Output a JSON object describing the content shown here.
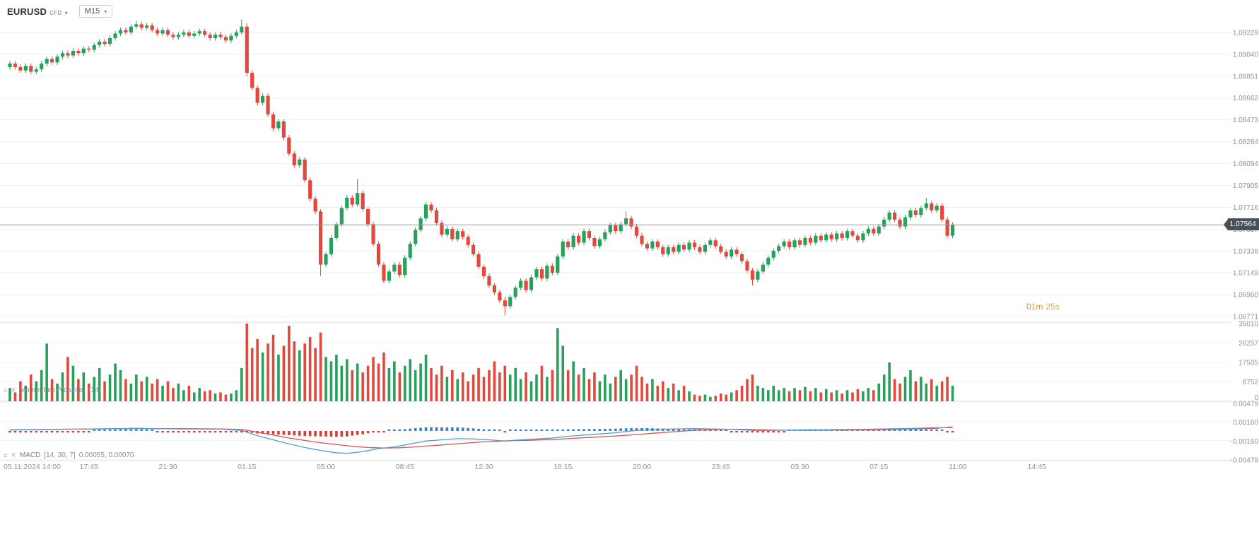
{
  "header": {
    "symbol": "EURUSD",
    "instrument_type": "CFD",
    "timeframe": "M15"
  },
  "price_badge": {
    "value": "1.07564"
  },
  "timer": {
    "minutes": "01m",
    "seconds": "25s"
  },
  "indicators": {
    "volume": {
      "name": "Momentum (Volume)",
      "params": "[14]"
    },
    "macd": {
      "name": "MACD",
      "params": "[14, 30, 7]",
      "values": "0.00055, 0.00070"
    }
  },
  "colors": {
    "up": "#27a05c",
    "down": "#e0493c",
    "macd_line": "#4e9fd4",
    "macd_signal": "#d8544f",
    "macd_hist_up": "#3b7fc4",
    "macd_hist_down": "#cf4336",
    "current_price_line": "#9a9a9a",
    "grid": "#efefef",
    "separator": "#e2e2e2",
    "axis_text": "#8e9398",
    "badge_bg": "#4a5058"
  },
  "chart_data": {
    "type": "candlestick",
    "title": "EURUSD CFD M15",
    "current_price": 1.07564,
    "current_price_label": "1.07564",
    "x_axis": {
      "candles_per_label": 15,
      "labels": [
        "05.11.2024  14:00",
        "17:45",
        "21:30",
        "01:15",
        "05:00",
        "08:45",
        "12:30",
        "16:15",
        "20:00",
        "23:45",
        "03:30",
        "07:15",
        "11:00",
        "14:45"
      ]
    },
    "y_axis": {
      "price_ticks": [
        "1.09229",
        "1.09040",
        "1.08851",
        "1.08662",
        "1.08473",
        "1.08284",
        "1.08094",
        "1.07905",
        "1.07716",
        "1.07527",
        "1.07338",
        "1.07149",
        "1.06960",
        "1.06771"
      ]
    },
    "candles": {
      "first_open": 1.0893,
      "default_wick": 0.00022,
      "closes": [
        1.0896,
        1.0893,
        1.089,
        1.0894,
        1.0889,
        1.0891,
        1.0896,
        1.09,
        1.0897,
        1.0902,
        1.0905,
        1.0903,
        1.0907,
        1.0905,
        1.0909,
        1.0908,
        1.0912,
        1.0915,
        1.0913,
        1.0918,
        1.0922,
        1.0925,
        1.0923,
        1.0928,
        1.093,
        1.0927,
        1.0929,
        1.0925,
        1.0922,
        1.0925,
        1.0921,
        1.0919,
        1.0921,
        1.0923,
        1.092,
        1.0922,
        1.0924,
        1.0921,
        1.0918,
        1.0921,
        1.0919,
        1.0916,
        1.092,
        1.0923,
        1.0928,
        1.0888,
        1.0875,
        1.0862,
        1.0868,
        1.0852,
        1.084,
        1.0846,
        1.0832,
        1.0818,
        1.0808,
        1.0813,
        1.0795,
        1.0779,
        1.0768,
        1.0722,
        1.0731,
        1.0745,
        1.0757,
        1.0771,
        1.078,
        1.0774,
        1.0784,
        1.077,
        1.0757,
        1.074,
        1.0722,
        1.0708,
        1.0716,
        1.0722,
        1.0713,
        1.0728,
        1.074,
        1.0752,
        1.0762,
        1.0774,
        1.0769,
        1.0758,
        1.0748,
        1.0753,
        1.0744,
        1.0751,
        1.0746,
        1.0739,
        1.0731,
        1.072,
        1.0712,
        1.0704,
        1.0698,
        1.0691,
        1.0686,
        1.0694,
        1.0702,
        1.0708,
        1.07,
        1.0711,
        1.0718,
        1.071,
        1.0721,
        1.0715,
        1.0729,
        1.0742,
        1.0737,
        1.0747,
        1.0741,
        1.0751,
        1.0745,
        1.0738,
        1.0744,
        1.075,
        1.0756,
        1.0751,
        1.0757,
        1.0762,
        1.0755,
        1.0747,
        1.074,
        1.0736,
        1.0742,
        1.0737,
        1.0731,
        1.0737,
        1.0733,
        1.0739,
        1.0735,
        1.0741,
        1.0737,
        1.0733,
        1.0739,
        1.0743,
        1.0738,
        1.0733,
        1.0729,
        1.0735,
        1.0731,
        1.0725,
        1.0717,
        1.0709,
        1.0716,
        1.0722,
        1.0728,
        1.0734,
        1.0738,
        1.0742,
        1.0737,
        1.0743,
        1.0739,
        1.0745,
        1.0741,
        1.0747,
        1.0743,
        1.0748,
        1.0744,
        1.0749,
        1.0745,
        1.0751,
        1.0747,
        1.0743,
        1.0749,
        1.0753,
        1.0749,
        1.0755,
        1.0761,
        1.0767,
        1.0761,
        1.0755,
        1.0763,
        1.0769,
        1.0765,
        1.0771,
        1.0775,
        1.0769,
        1.0773,
        1.0761,
        1.0747,
        1.07564
      ],
      "wick_overrides": {
        "24": [
          1.0933,
          1.0926
        ],
        "44": [
          1.0934,
          1.0921
        ],
        "45": [
          1.0931,
          1.0885
        ],
        "59": [
          1.077,
          1.0712
        ],
        "66": [
          1.0796,
          1.0772
        ],
        "94": [
          1.0694,
          1.0678
        ],
        "117": [
          1.0768,
          1.0755
        ],
        "141": [
          1.0719,
          1.0704
        ],
        "174": [
          1.078,
          1.0769
        ]
      }
    },
    "volume": {
      "ticks": [
        "35010",
        "26257",
        "17505",
        "8752",
        "0"
      ],
      "values": [
        6000,
        4000,
        9000,
        7000,
        12000,
        9000,
        14000,
        26000,
        10000,
        8000,
        13000,
        20000,
        16000,
        10000,
        13000,
        8000,
        11000,
        15000,
        9000,
        12000,
        17000,
        14000,
        10000,
        8000,
        12000,
        9000,
        11000,
        8000,
        10000,
        7000,
        9000,
        6000,
        8000,
        5000,
        7000,
        4000,
        6000,
        4500,
        5000,
        3500,
        4000,
        3000,
        3500,
        5000,
        15000,
        35010,
        24000,
        28000,
        22000,
        26000,
        30000,
        21000,
        25000,
        34000,
        27000,
        23000,
        26000,
        29000,
        24000,
        31000,
        20000,
        18000,
        21000,
        16000,
        19000,
        14000,
        17000,
        13000,
        16000,
        20000,
        17000,
        22000,
        15000,
        18000,
        13000,
        16000,
        19000,
        14000,
        17000,
        21000,
        15000,
        12000,
        16000,
        11000,
        14000,
        10000,
        13000,
        9000,
        12000,
        15000,
        11000,
        14000,
        18000,
        13000,
        16000,
        12000,
        15000,
        10000,
        13000,
        9000,
        12000,
        16000,
        11000,
        14000,
        33000,
        25000,
        14000,
        18000,
        12000,
        15000,
        10000,
        13000,
        9000,
        12000,
        8000,
        11000,
        14000,
        10000,
        12000,
        16000,
        11000,
        8000,
        10000,
        7000,
        9000,
        6000,
        8000,
        5000,
        7000,
        4500,
        3000,
        2500,
        3000,
        2000,
        2500,
        3500,
        3000,
        4000,
        5000,
        7000,
        10000,
        12000,
        7000,
        6000,
        5000,
        7000,
        5000,
        6000,
        4500,
        6000,
        5000,
        6500,
        4500,
        6000,
        4000,
        5500,
        4000,
        5000,
        3500,
        5000,
        4000,
        5500,
        4500,
        6000,
        5000,
        8000,
        12000,
        17500,
        10000,
        8000,
        11000,
        14000,
        9000,
        11000,
        8000,
        10000,
        7000,
        9000,
        11000,
        7000
      ]
    },
    "macd": {
      "params": "[14, 30, 7]",
      "current_values": "0.00055, 0.00070",
      "ticks": [
        "0.00479",
        "0.00160",
        "-0.00160",
        "-0.00479"
      ],
      "macd_points": [
        [
          0,
          0.00015
        ],
        [
          8,
          0.00025
        ],
        [
          16,
          0.00035
        ],
        [
          24,
          0.00045
        ],
        [
          32,
          0.00035
        ],
        [
          40,
          0.0003
        ],
        [
          44,
          0.0001
        ],
        [
          47,
          -0.0008
        ],
        [
          50,
          -0.0015
        ],
        [
          53,
          -0.0022
        ],
        [
          56,
          -0.0028
        ],
        [
          59,
          -0.0033
        ],
        [
          62,
          -0.0037
        ],
        [
          64,
          -0.0038
        ],
        [
          67,
          -0.0035
        ],
        [
          70,
          -0.003
        ],
        [
          73,
          -0.0027
        ],
        [
          76,
          -0.0022
        ],
        [
          79,
          -0.0017
        ],
        [
          82,
          -0.0015
        ],
        [
          85,
          -0.0013
        ],
        [
          88,
          -0.00135
        ],
        [
          91,
          -0.0015
        ],
        [
          94,
          -0.0017
        ],
        [
          97,
          -0.0015
        ],
        [
          100,
          -0.00135
        ],
        [
          103,
          -0.0012
        ],
        [
          106,
          -0.0009
        ],
        [
          109,
          -0.0007
        ],
        [
          112,
          -0.0005
        ],
        [
          115,
          -0.0003
        ],
        [
          118,
          0.0
        ],
        [
          121,
          0.0002
        ],
        [
          124,
          0.0003
        ],
        [
          127,
          0.00035
        ],
        [
          130,
          0.0004
        ],
        [
          133,
          0.00035
        ],
        [
          136,
          0.0003
        ],
        [
          139,
          0.0002
        ],
        [
          142,
          5e-05
        ],
        [
          145,
          0.0001
        ],
        [
          148,
          0.00015
        ],
        [
          151,
          0.0002
        ],
        [
          154,
          0.0002
        ],
        [
          157,
          0.00025
        ],
        [
          160,
          0.00025
        ],
        [
          163,
          0.0003
        ],
        [
          166,
          0.00035
        ],
        [
          169,
          0.0004
        ],
        [
          172,
          0.00045
        ],
        [
          175,
          0.00055
        ],
        [
          179,
          0.00055
        ]
      ],
      "signal_points": [
        [
          0,
          0.0002
        ],
        [
          8,
          0.00028
        ],
        [
          16,
          0.00035
        ],
        [
          24,
          0.0004
        ],
        [
          32,
          0.0004
        ],
        [
          40,
          0.00035
        ],
        [
          44,
          0.00025
        ],
        [
          47,
          -0.0002
        ],
        [
          50,
          -0.0007
        ],
        [
          53,
          -0.0012
        ],
        [
          56,
          -0.0016
        ],
        [
          59,
          -0.002
        ],
        [
          62,
          -0.0023
        ],
        [
          65,
          -0.0026
        ],
        [
          68,
          -0.0028
        ],
        [
          71,
          -0.0029
        ],
        [
          74,
          -0.00285
        ],
        [
          77,
          -0.0027
        ],
        [
          80,
          -0.0025
        ],
        [
          83,
          -0.0023
        ],
        [
          86,
          -0.0021
        ],
        [
          89,
          -0.0019
        ],
        [
          92,
          -0.00175
        ],
        [
          95,
          -0.00165
        ],
        [
          98,
          -0.0016
        ],
        [
          101,
          -0.0015
        ],
        [
          104,
          -0.0014
        ],
        [
          107,
          -0.00125
        ],
        [
          110,
          -0.0011
        ],
        [
          113,
          -0.00095
        ],
        [
          116,
          -0.0008
        ],
        [
          119,
          -0.0006
        ],
        [
          122,
          -0.0004
        ],
        [
          125,
          -0.0002
        ],
        [
          128,
          0.0
        ],
        [
          131,
          0.00015
        ],
        [
          134,
          0.00025
        ],
        [
          137,
          0.0003
        ],
        [
          140,
          0.00028
        ],
        [
          143,
          0.0002
        ],
        [
          146,
          0.00015
        ],
        [
          149,
          0.00012
        ],
        [
          152,
          0.00012
        ],
        [
          155,
          0.00015
        ],
        [
          158,
          0.00015
        ],
        [
          161,
          0.00018
        ],
        [
          164,
          0.0002
        ],
        [
          167,
          0.00025
        ],
        [
          170,
          0.0003
        ],
        [
          173,
          0.00035
        ],
        [
          176,
          0.00045
        ],
        [
          179,
          0.0007
        ]
      ]
    }
  }
}
